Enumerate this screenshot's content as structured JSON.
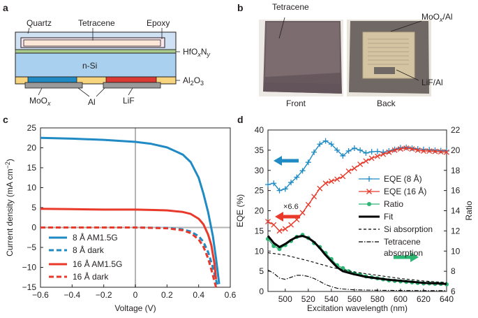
{
  "panels": {
    "a": {
      "letter": "a",
      "labels": {
        "quartz": "Quartz",
        "tetracene": "Tetracene",
        "epoxy": "Epoxy",
        "hfo": "HfOxNy",
        "nsi": "n-Si",
        "al2o3": "Al2O3",
        "moox": "MoOx",
        "al": "Al",
        "lif": "LiF"
      }
    },
    "b": {
      "letter": "b",
      "labels": {
        "tetracene": "Tetracene",
        "moox_al": "MoOx/Al",
        "lif_al": "LiF/Al",
        "front": "Front",
        "back": "Back"
      }
    },
    "c": {
      "letter": "c"
    },
    "d": {
      "letter": "d"
    }
  },
  "colors": {
    "blue": "#1f8ac3",
    "red": "#e8392a",
    "green": "#2db573",
    "black": "#000000",
    "grey": "#b3b3b3"
  },
  "chart_data": [
    {
      "type": "line",
      "panel": "c",
      "xlabel": "Voltage (V)",
      "ylabel": "Current density (mA cm−2)",
      "xlim": [
        -0.6,
        0.6
      ],
      "ylim": [
        -15,
        25
      ],
      "xticks": [
        "−0.6",
        "−0.4",
        "−0.2",
        "0",
        "0.2",
        "0.4",
        "0.6"
      ],
      "yticks": [
        "25",
        "20",
        "15",
        "10",
        "5",
        "0",
        "−5",
        "−10",
        "−15"
      ],
      "legend_position": "bottom-left",
      "series": [
        {
          "name": "8 Å AM1.5G",
          "color": "#1f8ac3",
          "style": "solid",
          "x": [
            -0.6,
            -0.4,
            -0.2,
            0,
            0.1,
            0.2,
            0.3,
            0.35,
            0.4,
            0.43,
            0.46,
            0.49,
            0.51,
            0.53
          ],
          "y": [
            22.5,
            22.3,
            22.0,
            21.5,
            21.0,
            20.1,
            18.3,
            16.4,
            12.5,
            8.5,
            3.8,
            -2.2,
            -7.8,
            -14.2
          ]
        },
        {
          "name": "8 Å dark",
          "color": "#1f8ac3",
          "style": "dashed",
          "x": [
            -0.6,
            -0.2,
            0,
            0.2,
            0.3,
            0.35,
            0.4,
            0.43,
            0.46,
            0.49,
            0.52
          ],
          "y": [
            0,
            0,
            0,
            -0.1,
            -0.5,
            -1.0,
            -2.2,
            -3.6,
            -6.2,
            -10.0,
            -14.8
          ]
        },
        {
          "name": "16 Å AM1.5G",
          "color": "#e8392a",
          "style": "solid",
          "x": [
            -0.6,
            -0.4,
            -0.2,
            0,
            0.1,
            0.2,
            0.3,
            0.35,
            0.4,
            0.43,
            0.46,
            0.48,
            0.5,
            0.51
          ],
          "y": [
            4.7,
            4.6,
            4.5,
            4.5,
            4.4,
            4.3,
            3.9,
            3.4,
            2.2,
            0.8,
            -1.8,
            -4.4,
            -9.0,
            -13.0
          ]
        },
        {
          "name": "16 Å dark",
          "color": "#e8392a",
          "style": "dashed",
          "x": [
            -0.6,
            -0.2,
            0,
            0.2,
            0.3,
            0.35,
            0.4,
            0.43,
            0.46,
            0.48,
            0.5,
            0.51
          ],
          "y": [
            0,
            0,
            0,
            -0.2,
            -0.7,
            -1.4,
            -3.0,
            -4.8,
            -7.8,
            -10.5,
            -13.5,
            -15.0
          ]
        }
      ]
    },
    {
      "type": "line",
      "panel": "d",
      "xlabel": "Excitation wavelength (nm)",
      "ylabel": "EQE (%)",
      "ylabel_right": "Ratio",
      "xlim": [
        485,
        640
      ],
      "ylim": [
        0,
        40
      ],
      "ylim_right": [
        6,
        22
      ],
      "xticks": [
        "500",
        "520",
        "540",
        "560",
        "580",
        "600",
        "620",
        "640"
      ],
      "yticks": [
        "0",
        "5",
        "10",
        "15",
        "20",
        "25",
        "30",
        "35",
        "40"
      ],
      "yticks_right": [
        "6",
        "8",
        "10",
        "12",
        "14",
        "16",
        "18",
        "20",
        "22"
      ],
      "legend_position": "right",
      "annotations": [
        "×6.6"
      ],
      "series": [
        {
          "name": "EQE (8 Å)",
          "axis": "left",
          "color": "#1f8ac3",
          "marker": "plus",
          "x": [
            485,
            490,
            495,
            500,
            505,
            510,
            515,
            520,
            525,
            530,
            535,
            540,
            545,
            550,
            555,
            560,
            565,
            570,
            575,
            580,
            585,
            590,
            595,
            600,
            605,
            610,
            615,
            620,
            625,
            630,
            635,
            640
          ],
          "y": [
            26.5,
            26.8,
            25.0,
            25.4,
            27.0,
            28.3,
            29.9,
            32.0,
            34.5,
            36.5,
            37.3,
            36.5,
            35.0,
            33.6,
            34.8,
            35.5,
            35.0,
            34.3,
            34.6,
            34.7,
            34.5,
            34.8,
            35.2,
            35.6,
            35.7,
            35.5,
            35.3,
            35.2,
            35.1,
            35.0,
            34.9,
            34.8
          ]
        },
        {
          "name": "EQE (16 Å)",
          "axis": "left",
          "color": "#e8392a",
          "marker": "x",
          "x": [
            485,
            490,
            495,
            500,
            505,
            510,
            515,
            520,
            525,
            530,
            535,
            540,
            545,
            550,
            555,
            560,
            565,
            570,
            575,
            580,
            585,
            590,
            595,
            600,
            605,
            610,
            615,
            620,
            625,
            630,
            635,
            640
          ],
          "y": [
            17.3,
            16.5,
            15.0,
            15.5,
            16.5,
            17.8,
            19.5,
            21.5,
            23.5,
            25.5,
            26.8,
            27.3,
            27.8,
            28.5,
            29.8,
            30.5,
            31.5,
            32.3,
            33.0,
            33.5,
            34.0,
            34.5,
            35.0,
            35.3,
            35.5,
            35.3,
            35.0,
            34.8,
            34.8,
            34.7,
            34.6,
            34.5
          ]
        },
        {
          "name": "Ratio",
          "axis": "right",
          "color": "#2db573",
          "marker": "circle",
          "x": [
            485,
            490,
            495,
            500,
            505,
            510,
            515,
            520,
            525,
            530,
            535,
            540,
            545,
            550,
            555,
            560,
            565,
            570,
            575,
            580,
            585,
            590,
            595,
            600,
            605,
            610,
            615,
            620,
            625,
            630,
            635,
            640
          ],
          "y": [
            11.2,
            10.5,
            10.2,
            10.6,
            11.0,
            11.4,
            11.6,
            11.3,
            10.8,
            10.4,
            9.8,
            9.2,
            8.6,
            8.3,
            8.0,
            7.8,
            7.7,
            7.5,
            7.4,
            7.3,
            7.2,
            7.1,
            7.05,
            7.0,
            6.95,
            6.9,
            6.85,
            6.8,
            6.8,
            6.75,
            6.75,
            6.7
          ]
        },
        {
          "name": "Fit",
          "axis": "right",
          "color": "#000000",
          "style": "solid",
          "x": [
            485,
            490,
            495,
            500,
            505,
            510,
            515,
            520,
            525,
            530,
            535,
            540,
            545,
            550,
            560,
            570,
            580,
            590,
            600,
            610,
            620,
            630,
            640
          ],
          "y": [
            11.5,
            10.8,
            10.4,
            10.7,
            11.1,
            11.4,
            11.5,
            11.3,
            10.9,
            10.3,
            9.6,
            9.0,
            8.4,
            8.0,
            7.7,
            7.45,
            7.3,
            7.15,
            7.05,
            6.95,
            6.85,
            6.8,
            6.75
          ]
        },
        {
          "name": "Si absorption",
          "axis": "left",
          "color": "#000000",
          "style": "dashed",
          "x": [
            485,
            500,
            520,
            540,
            560,
            580,
            600,
            620,
            640
          ],
          "y": [
            9.6,
            9.0,
            7.6,
            6.0,
            4.8,
            4.0,
            3.2,
            2.6,
            2.2
          ]
        },
        {
          "name": "Tetracene absorption",
          "axis": "left",
          "color": "#000000",
          "style": "dashdot",
          "x": [
            485,
            490,
            495,
            500,
            505,
            510,
            515,
            520,
            525,
            530,
            535,
            540,
            545,
            550,
            560,
            580,
            600,
            620,
            640
          ],
          "y": [
            5.3,
            4.5,
            3.3,
            3.0,
            3.5,
            4.0,
            4.0,
            3.7,
            3.2,
            2.5,
            1.7,
            1.2,
            0.8,
            0.6,
            0.4,
            0.3,
            0.25,
            0.2,
            0.2
          ]
        }
      ]
    }
  ]
}
